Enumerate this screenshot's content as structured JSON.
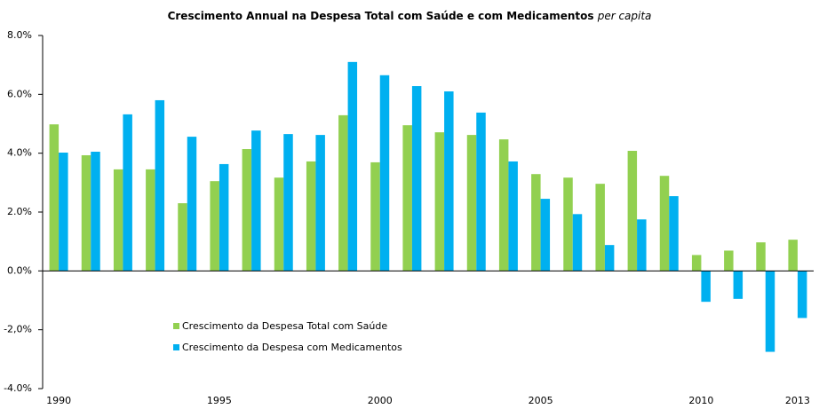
{
  "chart_data": {
    "type": "bar",
    "title": [
      "Crescimento Annual na Despesa Total com Saúde e com Medicamentos",
      "per capita"
    ],
    "categories": [
      "1990",
      null,
      null,
      null,
      null,
      "1995",
      null,
      null,
      null,
      null,
      "2000",
      null,
      null,
      null,
      null,
      "2005",
      null,
      null,
      null,
      null,
      "2010",
      null,
      null,
      "2013"
    ],
    "series": [
      {
        "name": "Crescimento da Despesa Total com Saúde",
        "color": "#92d050",
        "values": [
          4.98,
          3.93,
          3.45,
          3.45,
          2.3,
          3.05,
          4.14,
          3.17,
          3.72,
          5.29,
          3.69,
          4.95,
          4.71,
          4.62,
          4.47,
          3.29,
          3.17,
          2.96,
          4.08,
          3.23,
          0.54,
          0.69,
          0.97,
          1.06
        ]
      },
      {
        "name": "Crescimento da Despesa com Medicamentos",
        "color": "#00b0f0",
        "values": [
          4.02,
          4.05,
          5.32,
          5.8,
          4.56,
          3.63,
          4.77,
          4.65,
          4.62,
          7.1,
          6.65,
          6.28,
          6.1,
          5.38,
          3.72,
          2.45,
          1.93,
          0.88,
          1.75,
          2.54,
          -1.05,
          -0.95,
          -2.75,
          -1.6
        ]
      }
    ],
    "ylim": [
      -4,
      8
    ],
    "yticks": [
      {
        "value": -4,
        "label": "-4.0%"
      },
      {
        "value": -2,
        "label": "-2,0%"
      },
      {
        "value": 0,
        "label": "0.0%"
      },
      {
        "value": 2,
        "label": "2.0%"
      },
      {
        "value": 4,
        "label": "4.0%"
      },
      {
        "value": 6,
        "label": "6.0%"
      },
      {
        "value": 8,
        "label": "8.0%"
      }
    ],
    "grid": false
  }
}
